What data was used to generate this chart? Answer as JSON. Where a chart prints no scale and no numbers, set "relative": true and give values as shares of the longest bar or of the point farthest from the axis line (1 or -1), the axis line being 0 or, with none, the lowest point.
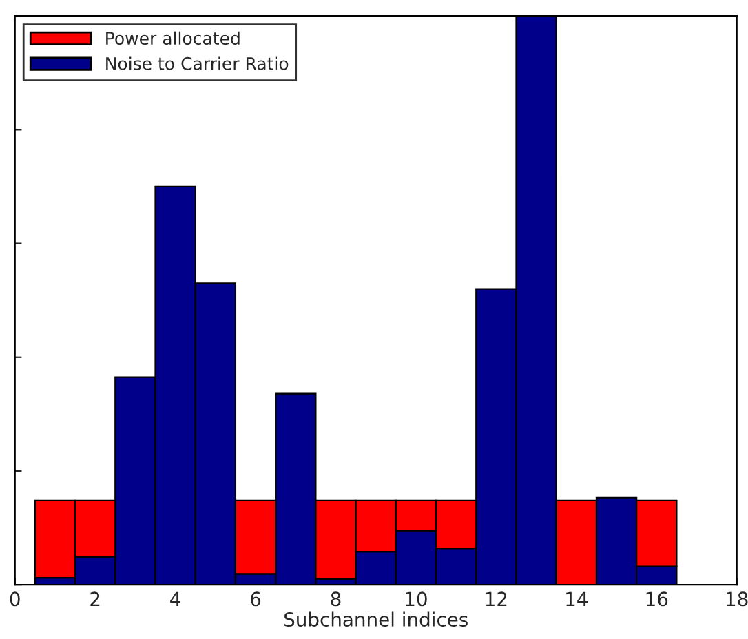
{
  "chart_data": {
    "type": "bar",
    "xlabel": "Subchannel indices",
    "relative": true,
    "stacked": true,
    "x": [
      1,
      2,
      3,
      4,
      5,
      6,
      7,
      8,
      9,
      10,
      11,
      12,
      13,
      14,
      15,
      16
    ],
    "xlim": [
      0,
      18
    ],
    "xticks": [
      0,
      2,
      4,
      6,
      8,
      10,
      12,
      14,
      16,
      18
    ],
    "series": [
      {
        "name": "Noise to Carrier Ratio",
        "color": "#00008b",
        "values": [
          0.012,
          0.049,
          0.365,
          0.7,
          0.53,
          0.019,
          0.336,
          0.01,
          0.058,
          0.095,
          0.063,
          0.52,
          1.0,
          null,
          0.153,
          0.032
        ]
      },
      {
        "name": "Power allocated",
        "color": "#ff0000",
        "values": [
          0.136,
          0.099,
          null,
          null,
          null,
          0.129,
          null,
          0.138,
          0.09,
          0.053,
          0.085,
          null,
          null,
          0.148,
          null,
          0.116
        ]
      }
    ],
    "legend": "top left",
    "grid": false
  }
}
